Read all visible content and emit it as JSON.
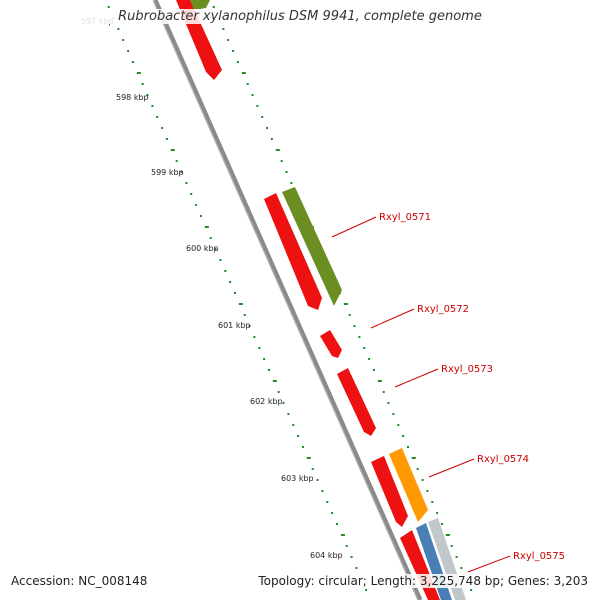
{
  "title": "Rubrobacter xylanophilus DSM 9941, complete genome",
  "accession_text": "Accession: NC_008148",
  "stats_text": "Topology: circular; Length: 3,225,748 bp; Genes: 3,203",
  "ticks": [
    {
      "label": "597 kbp",
      "kbp": 597
    },
    {
      "label": "598 kbp",
      "kbp": 598
    },
    {
      "label": "599 kbp",
      "kbp": 599
    },
    {
      "label": "600 kbp",
      "kbp": 600
    },
    {
      "label": "601 kbp",
      "kbp": 601
    },
    {
      "label": "602 kbp",
      "kbp": 602
    },
    {
      "label": "603 kbp",
      "kbp": 603
    },
    {
      "label": "604 kbp",
      "kbp": 604
    }
  ],
  "gene_labels": [
    {
      "text": "Rxyl_0571"
    },
    {
      "text": "Rxyl_0572"
    },
    {
      "text": "Rxyl_0573"
    },
    {
      "text": "Rxyl_0574"
    },
    {
      "text": "Rxyl_0575"
    }
  ],
  "colors": {
    "backbone": "#8a8a8a",
    "gene_red": "#ee1111",
    "gene_olive": "#6b8e23",
    "gene_orange": "#ff9900",
    "gene_blue": "#4a7fb5",
    "gene_gray": "#c0c8cc",
    "dots": "#228b22",
    "label_red": "#cc0000"
  }
}
